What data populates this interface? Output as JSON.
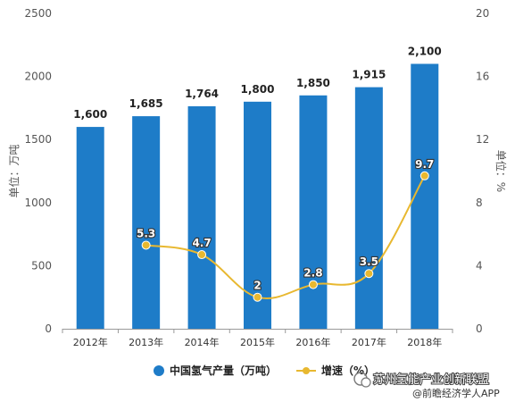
{
  "chart_data": {
    "type": "bar",
    "categories": [
      "2012年",
      "2013年",
      "2014年",
      "2015年",
      "2016年",
      "2017年",
      "2018年"
    ],
    "series": [
      {
        "name": "中国氢气产量（万吨）",
        "type": "bar",
        "axis": "left",
        "color": "#1e7cc8",
        "values": [
          1600,
          1685,
          1764,
          1800,
          1850,
          1915,
          2100
        ],
        "labels": [
          "1,600",
          "1,685",
          "1,764",
          "1,800",
          "1,850",
          "1,915",
          "2,100"
        ]
      },
      {
        "name": "增速（%）",
        "type": "line",
        "axis": "right",
        "color": "#e8b830",
        "values": [
          null,
          5.3,
          4.7,
          2,
          2.8,
          3.5,
          9.7
        ],
        "labels": [
          "",
          "5.3",
          "4.7",
          "2",
          "2.8",
          "3.5",
          "9.7"
        ]
      }
    ],
    "ylabel": "单位：万吨",
    "y2label": "单位：%",
    "ylim": [
      0,
      2500
    ],
    "yticks": [
      "0",
      "500",
      "1000",
      "1500",
      "2000",
      "2500"
    ],
    "y2lim": [
      0,
      20
    ],
    "y2ticks": [
      "0",
      "4",
      "8",
      "12",
      "16",
      "20"
    ],
    "grid": false,
    "legend_placement": "bottom-center"
  },
  "watermark": {
    "line1": "苏州氢能产业创新联盟",
    "line2": "@前瞻经济学人APP"
  }
}
